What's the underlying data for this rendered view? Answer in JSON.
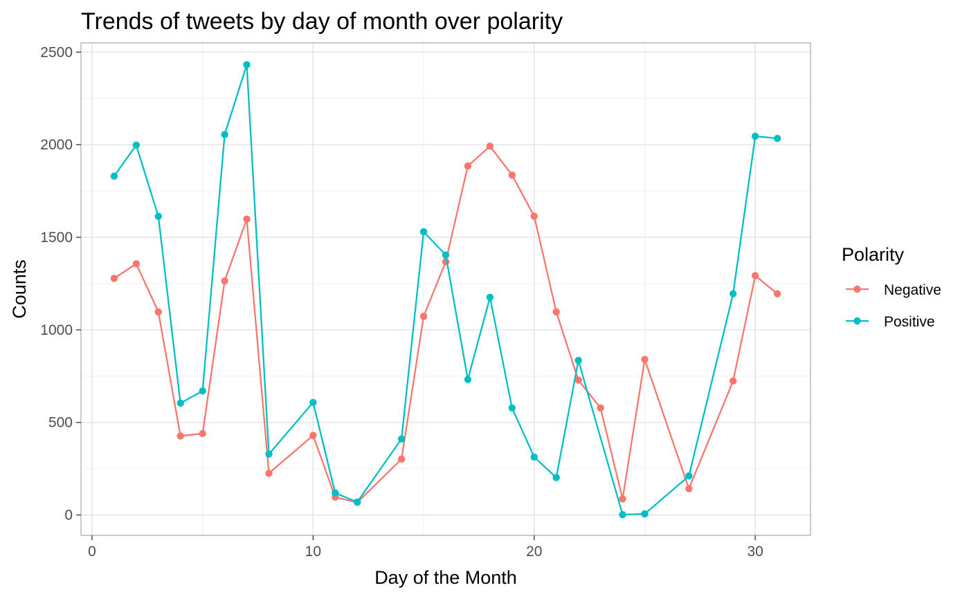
{
  "chart_data": {
    "type": "line",
    "title": "Trends of tweets by day of month over polarity",
    "xlabel": "Day of the Month",
    "ylabel": "Counts",
    "xlim": [
      -0.5,
      32.5
    ],
    "ylim": [
      -110,
      2550
    ],
    "x_ticks": [
      0,
      10,
      20,
      30
    ],
    "y_ticks": [
      0,
      500,
      1000,
      1500,
      2000,
      2500
    ],
    "grid": true,
    "legend": {
      "title": "Polarity",
      "position": "right"
    },
    "series": [
      {
        "name": "Negative",
        "color": "#F8766D",
        "points": [
          [
            1,
            1278
          ],
          [
            2,
            1357
          ],
          [
            3,
            1097
          ],
          [
            4,
            427
          ],
          [
            5,
            440
          ],
          [
            6,
            1264
          ],
          [
            7,
            1598
          ],
          [
            8,
            225
          ],
          [
            10,
            430
          ],
          [
            11,
            96
          ],
          [
            12,
            68
          ],
          [
            14,
            302
          ],
          [
            15,
            1073
          ],
          [
            16,
            1368
          ],
          [
            17,
            1885
          ],
          [
            18,
            1992
          ],
          [
            19,
            1836
          ],
          [
            20,
            1614
          ],
          [
            21,
            1097
          ],
          [
            22,
            729
          ],
          [
            23,
            578
          ],
          [
            24,
            87
          ],
          [
            25,
            840
          ],
          [
            27,
            142
          ],
          [
            29,
            724
          ],
          [
            30,
            1293
          ],
          [
            31,
            1195
          ]
        ]
      },
      {
        "name": "Positive",
        "color": "#00BFC4",
        "points": [
          [
            1,
            1830
          ],
          [
            2,
            1998
          ],
          [
            3,
            1613
          ],
          [
            4,
            604
          ],
          [
            5,
            670
          ],
          [
            6,
            2055
          ],
          [
            7,
            2432
          ],
          [
            8,
            329
          ],
          [
            10,
            608
          ],
          [
            11,
            119
          ],
          [
            12,
            70
          ],
          [
            14,
            411
          ],
          [
            15,
            1530
          ],
          [
            16,
            1404
          ],
          [
            17,
            732
          ],
          [
            18,
            1176
          ],
          [
            19,
            578
          ],
          [
            20,
            313
          ],
          [
            21,
            202
          ],
          [
            22,
            835
          ],
          [
            24,
            2
          ],
          [
            25,
            6
          ],
          [
            27,
            211
          ],
          [
            29,
            1195
          ],
          [
            30,
            2046
          ],
          [
            31,
            2034
          ]
        ]
      }
    ]
  }
}
